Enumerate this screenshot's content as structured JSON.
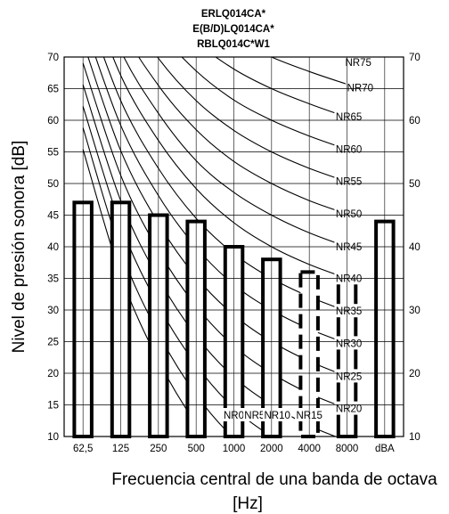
{
  "chart_data": {
    "type": "bar",
    "title_lines": [
      "ERLQ014CA*",
      "E(B/D)LQ014CA*",
      "RBLQ014C*W1"
    ],
    "xlabel_lines": [
      "Frecuencia central de una banda de octava",
      "[Hz]"
    ],
    "ylabel": "Nivel de presión sonora [dB]",
    "categories": [
      "62,5",
      "125",
      "250",
      "500",
      "1000",
      "2000",
      "4000",
      "8000",
      "dBA"
    ],
    "values": [
      47,
      47,
      45,
      44,
      40,
      38,
      36,
      35,
      44
    ],
    "dashed_bars": [
      6
    ],
    "ylim": [
      10,
      70
    ],
    "yticks": [
      10,
      15,
      20,
      25,
      30,
      35,
      40,
      45,
      50,
      55,
      60,
      65,
      70
    ],
    "yticks_right": [
      10,
      20,
      30,
      40,
      50,
      60,
      70
    ],
    "nr_curves": [
      {
        "label": "NR0",
        "values": [
          55.4,
          35.5,
          22.0,
          12.0,
          4.8,
          0,
          -3.5,
          -6.1
        ]
      },
      {
        "label": "NR5",
        "values": [
          58.8,
          39.4,
          26.3,
          16.6,
          9.7,
          5,
          1.6,
          -1.0
        ]
      },
      {
        "label": "NR10",
        "values": [
          62.2,
          43.4,
          30.7,
          21.3,
          14.5,
          10,
          6.7,
          4.2
        ]
      },
      {
        "label": "NR15",
        "values": [
          65.6,
          47.3,
          35.0,
          25.9,
          19.4,
          15,
          11.7,
          9.3
        ]
      },
      {
        "label": "NR20",
        "values": [
          69.0,
          51.3,
          39.4,
          30.6,
          24.3,
          20,
          16.8,
          14.4
        ]
      },
      {
        "label": "NR25",
        "values": [
          72.4,
          55.2,
          43.7,
          35.2,
          29.2,
          25,
          21.9,
          19.5
        ]
      },
      {
        "label": "NR30",
        "values": [
          75.8,
          59.2,
          48.1,
          39.9,
          34.0,
          30,
          27.0,
          24.7
        ]
      },
      {
        "label": "NR35",
        "values": [
          79.2,
          63.1,
          52.4,
          44.5,
          38.9,
          35,
          32.1,
          29.8
        ]
      },
      {
        "label": "NR40",
        "values": [
          82.6,
          67.1,
          56.8,
          49.2,
          43.8,
          40,
          37.2,
          35.0
        ]
      },
      {
        "label": "NR45",
        "values": [
          86.0,
          71.0,
          61.1,
          53.6,
          48.6,
          45,
          42.2,
          40.0
        ]
      },
      {
        "label": "NR50",
        "values": [
          89.4,
          75.0,
          65.5,
          58.5,
          53.5,
          50,
          47.3,
          45.2
        ]
      },
      {
        "label": "NR55",
        "values": [
          92.9,
          78.9,
          69.8,
          63.1,
          58.4,
          55,
          52.4,
          50.3
        ]
      },
      {
        "label": "NR60",
        "values": [
          96.3,
          82.9,
          74.2,
          67.8,
          63.2,
          60,
          57.5,
          55.4
        ]
      },
      {
        "label": "NR65",
        "values": [
          99.7,
          86.8,
          78.5,
          72.4,
          68.1,
          65,
          62.6,
          60.5
        ]
      },
      {
        "label": "NR70",
        "values": [
          103.1,
          90.8,
          82.9,
          77.1,
          73.0,
          70,
          67.7,
          65.7
        ]
      },
      {
        "label": "NR75",
        "values": [
          106.5,
          94.7,
          87.2,
          81.7,
          77.9,
          75,
          72.8,
          70.8
        ]
      }
    ]
  }
}
